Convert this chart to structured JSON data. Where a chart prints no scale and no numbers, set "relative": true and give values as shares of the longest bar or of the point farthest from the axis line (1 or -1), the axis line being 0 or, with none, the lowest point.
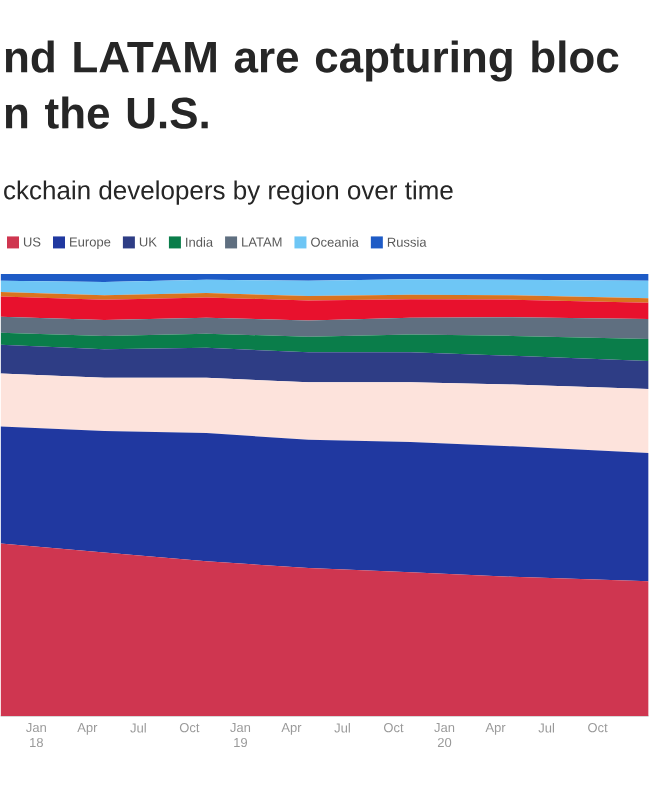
{
  "chart_data": {
    "type": "area",
    "stacked": true,
    "relative": true,
    "title": "nd LATAM are capturing bloc n the U.S.",
    "subtitle": "ckchain developers by region over time",
    "legend": "top",
    "grid": false,
    "x": [
      "2017-10-28",
      "2018-05",
      "2018-11",
      "2019-05",
      "2019-11",
      "2020-05",
      "2020-12-31"
    ],
    "xlim": [
      "2017-10-28",
      "2020-12-31"
    ],
    "xticks": [
      {
        "value": "2018-01",
        "label": "Jan 18"
      },
      {
        "value": "2018-04",
        "label": "Apr"
      },
      {
        "value": "2018-07",
        "label": "Jul"
      },
      {
        "value": "2018-10",
        "label": "Oct"
      },
      {
        "value": "2019-01",
        "label": "Jan 19"
      },
      {
        "value": "2019-04",
        "label": "Apr"
      },
      {
        "value": "2019-07",
        "label": "Jul"
      },
      {
        "value": "2019-10",
        "label": "Oct"
      },
      {
        "value": "2020-01",
        "label": "Jan 20"
      },
      {
        "value": "2020-04",
        "label": "Apr"
      },
      {
        "value": "2020-07",
        "label": "Jul"
      },
      {
        "value": "2020-10",
        "label": "Oct"
      }
    ],
    "series": [
      {
        "name": "US",
        "color": "#cf3650",
        "values": [
          0.39,
          0.37,
          0.35,
          0.335,
          0.325,
          0.315,
          0.305
        ]
      },
      {
        "name": "Europe",
        "color": "#2038a0",
        "values": [
          0.265,
          0.275,
          0.29,
          0.29,
          0.295,
          0.295,
          0.29
        ]
      },
      {
        "color": "#fde3dc",
        "values": [
          0.12,
          0.12,
          0.125,
          0.13,
          0.135,
          0.14,
          0.145
        ]
      },
      {
        "name": "UK",
        "color": "#2e3d85",
        "values": [
          0.065,
          0.065,
          0.068,
          0.068,
          0.068,
          0.065,
          0.063
        ]
      },
      {
        "name": "India",
        "color": "#0a7d4a",
        "values": [
          0.027,
          0.03,
          0.032,
          0.035,
          0.04,
          0.045,
          0.05
        ]
      },
      {
        "name": "LATAM",
        "color": "#5f6f80",
        "values": [
          0.036,
          0.036,
          0.036,
          0.037,
          0.038,
          0.042,
          0.045
        ]
      },
      {
        "color": "#e8112d",
        "values": [
          0.046,
          0.046,
          0.046,
          0.045,
          0.042,
          0.04,
          0.037
        ]
      },
      {
        "color": "#d9731f",
        "values": [
          0.01,
          0.01,
          0.01,
          0.01,
          0.01,
          0.01,
          0.01
        ]
      },
      {
        "name": "Oceania",
        "color": "#6ec6f5",
        "values": [
          0.026,
          0.03,
          0.03,
          0.035,
          0.035,
          0.035,
          0.04
        ]
      },
      {
        "name": "Russia",
        "color": "#1e5bc6",
        "values": [
          0.015,
          0.018,
          0.013,
          0.015,
          0.012,
          0.013,
          0.015
        ]
      }
    ]
  }
}
